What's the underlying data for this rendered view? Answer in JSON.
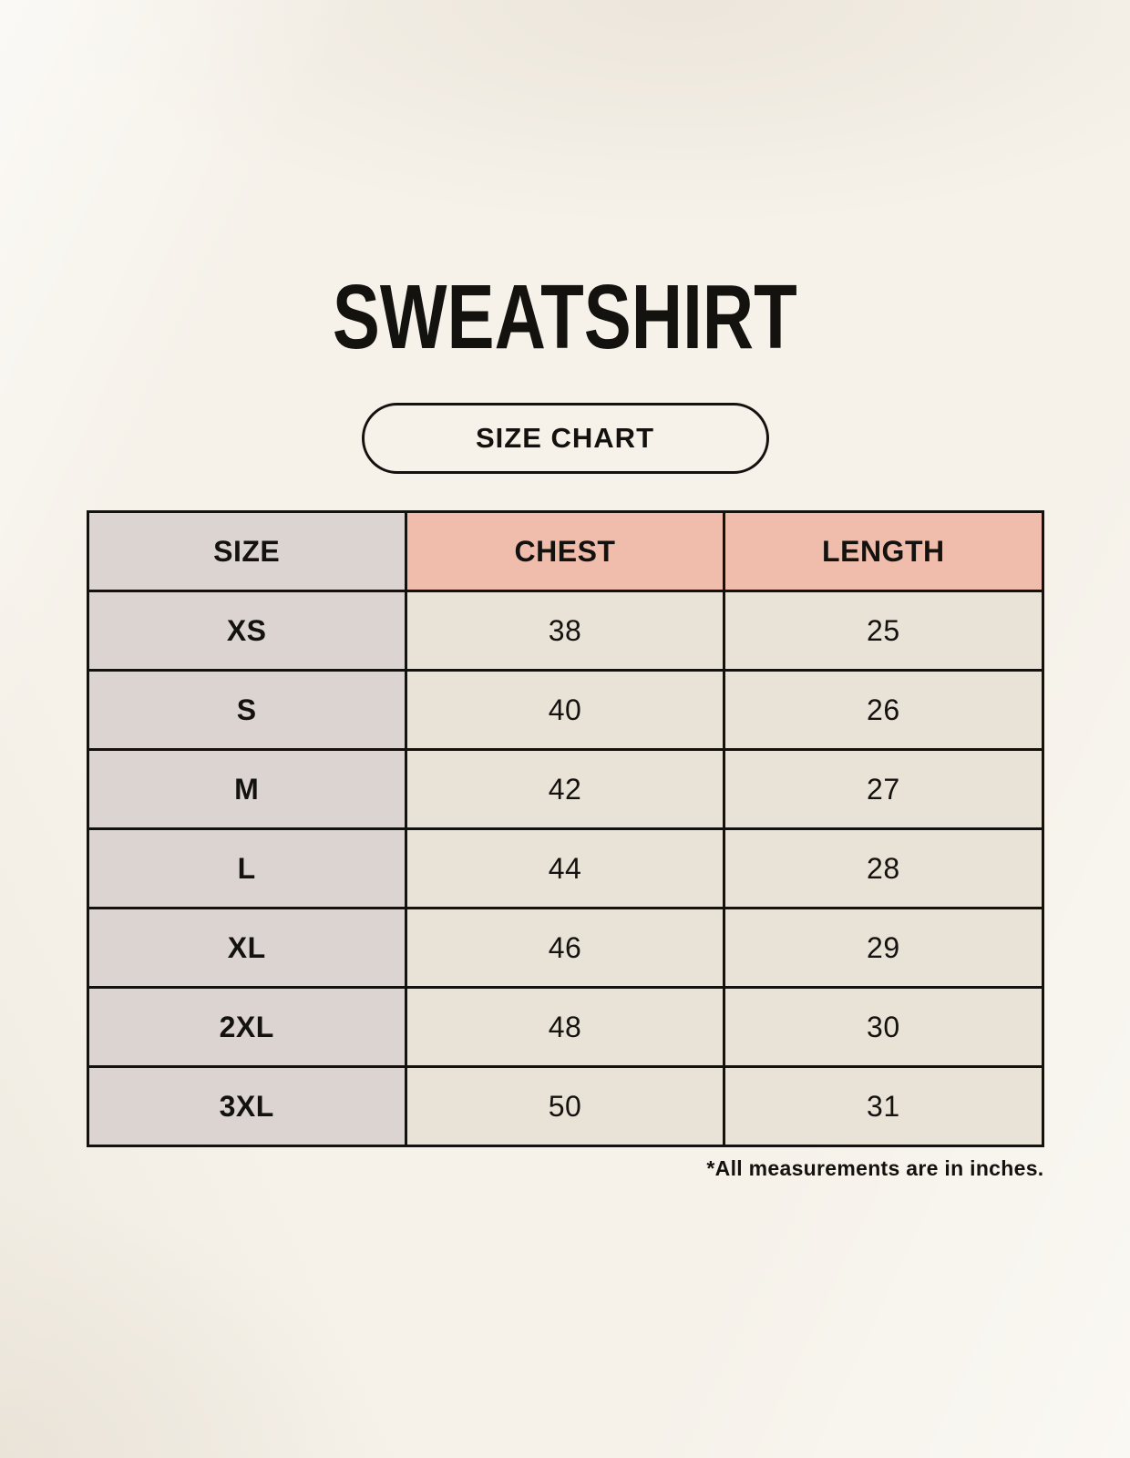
{
  "page": {
    "title": "SWEATSHIRT",
    "size_chart_label": "SIZE CHART",
    "footnote": "*All measurements are in inches."
  },
  "chart_data": {
    "type": "table",
    "title": "SWEATSHIRT",
    "subtitle": "SIZE CHART",
    "columns": [
      "SIZE",
      "CHEST",
      "LENGTH"
    ],
    "rows": [
      [
        "XS",
        "38",
        "25"
      ],
      [
        "S",
        "40",
        "26"
      ],
      [
        "M",
        "42",
        "27"
      ],
      [
        "L",
        "44",
        "28"
      ],
      [
        "XL",
        "46",
        "29"
      ],
      [
        "2XL",
        "48",
        "30"
      ],
      [
        "3XL",
        "50",
        "31"
      ]
    ],
    "units": "inches",
    "note": "*All measurements are in inches."
  },
  "colors": {
    "background": "#f6f2ea",
    "size_column_fill": "#dbd4d0",
    "header_accent_fill": "#f0bcab",
    "value_cell_fill": "#e9e2d7",
    "ink": "#14120f"
  }
}
